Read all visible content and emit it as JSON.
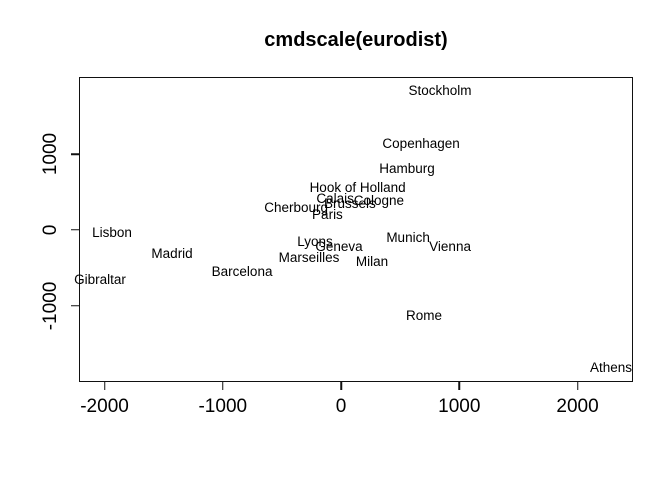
{
  "chart_data": {
    "type": "scatter",
    "title": "cmdscale(eurodist)",
    "xlabel": "",
    "ylabel": "",
    "xlim": [
      -2216,
      2469
    ],
    "ylim": [
      -2013,
      2026
    ],
    "x_ticks": [
      -2000,
      -1000,
      0,
      1000,
      2000
    ],
    "y_ticks": [
      -1000,
      0,
      1000
    ],
    "grid": false,
    "legend": false,
    "marker": "text-label",
    "text_color": "#000000",
    "box_color": "#111111",
    "background_color": "#ffffff",
    "points": [
      {
        "label": "Athens",
        "x": 2283,
        "y": -1828
      },
      {
        "label": "Barcelona",
        "x": -837,
        "y": -556
      },
      {
        "label": "Brussels",
        "x": 75,
        "y": 345
      },
      {
        "label": "Calais",
        "x": -50,
        "y": 410
      },
      {
        "label": "Cherbourg",
        "x": -380,
        "y": 290
      },
      {
        "label": "Cologne",
        "x": 320,
        "y": 385
      },
      {
        "label": "Copenhagen",
        "x": 677,
        "y": 1139
      },
      {
        "label": "Geneva",
        "x": -17,
        "y": -225
      },
      {
        "label": "Gibraltar",
        "x": -2038,
        "y": -662
      },
      {
        "label": "Hamburg",
        "x": 558,
        "y": 808
      },
      {
        "label": "Hook of Holland",
        "x": 140,
        "y": 550
      },
      {
        "label": "Lisbon",
        "x": -1937,
        "y": -40
      },
      {
        "label": "Lyons",
        "x": -220,
        "y": -159
      },
      {
        "label": "Madrid",
        "x": -1429,
        "y": -318
      },
      {
        "label": "Marseilles",
        "x": -271,
        "y": -371
      },
      {
        "label": "Milan",
        "x": 262,
        "y": -424
      },
      {
        "label": "Munich",
        "x": 567,
        "y": -106
      },
      {
        "label": "Paris",
        "x": -115,
        "y": 199
      },
      {
        "label": "Rome",
        "x": 702,
        "y": -1139
      },
      {
        "label": "Stockholm",
        "x": 837,
        "y": 1841
      },
      {
        "label": "Vienna",
        "x": 922,
        "y": -225
      }
    ]
  }
}
